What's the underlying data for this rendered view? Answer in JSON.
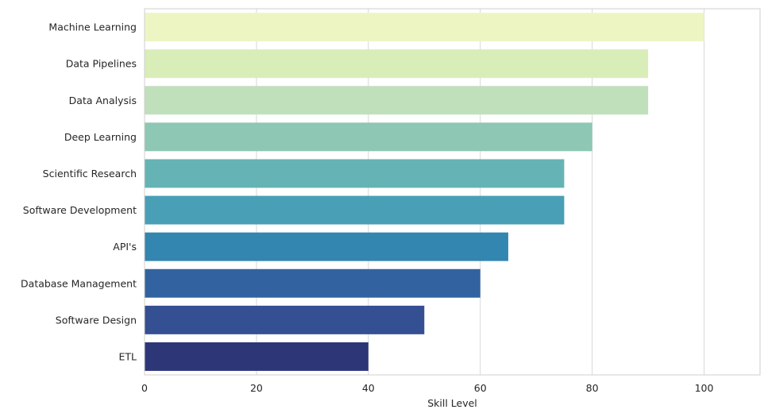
{
  "chart_data": {
    "type": "bar",
    "orientation": "horizontal",
    "categories": [
      "Machine Learning",
      "Data Pipelines",
      "Data Analysis",
      "Deep Learning",
      "Scientific Research",
      "Software Development",
      "API's",
      "Database Management",
      "Software Design",
      "ETL"
    ],
    "values": [
      100,
      90,
      90,
      80,
      75,
      75,
      65,
      60,
      50,
      40
    ],
    "colors": [
      "#edf5c3",
      "#d9edb8",
      "#c0e0bc",
      "#8ec7b3",
      "#65b3b5",
      "#489fb6",
      "#3286b0",
      "#3263a0",
      "#344f92",
      "#2d3778"
    ],
    "title": "",
    "xlabel": "Skill Level",
    "ylabel": "",
    "xlim": [
      0,
      110
    ],
    "xticks": [
      "0",
      "20",
      "40",
      "60",
      "80",
      "100"
    ],
    "xtick_values": [
      0,
      20,
      40,
      60,
      80,
      100
    ],
    "grid": true,
    "grid_color": "#d8d8d8"
  }
}
